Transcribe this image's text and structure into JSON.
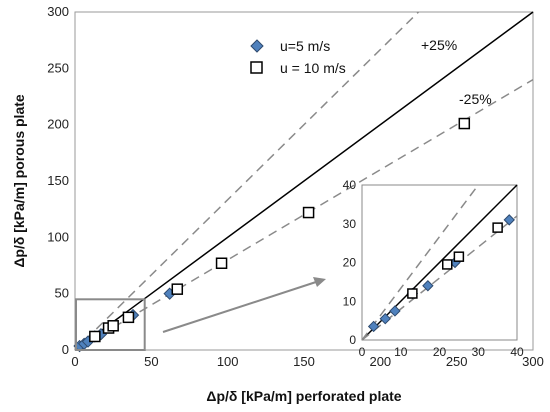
{
  "chart_data": [
    {
      "type": "scatter",
      "xlabel": "Δp/δ [kPa/m] perforated plate",
      "ylabel": "Δp/δ [kPa/m] porous plate",
      "xlim": [
        0,
        300
      ],
      "ylim": [
        0,
        300
      ],
      "x_ticks": [
        "0",
        "50",
        "100",
        "150",
        "200",
        "250",
        "300"
      ],
      "y_ticks": [
        "0",
        "50",
        "100",
        "150",
        "200",
        "250",
        "300"
      ],
      "grid": false,
      "legend_position": "top-left",
      "series": [
        {
          "name": "u=5 m/s",
          "marker": "diamond",
          "color": "#4f81bd",
          "x": [
            3,
            6,
            8.5,
            13,
            17,
            24,
            38,
            62
          ],
          "y": [
            3.5,
            5.5,
            7.5,
            12,
            14,
            20,
            31,
            50
          ]
        },
        {
          "name": "u = 10 m/s",
          "marker": "square",
          "color": "#ffffff",
          "x": [
            13,
            22,
            25,
            35,
            67,
            96,
            153,
            255
          ],
          "y": [
            12,
            19.5,
            21.5,
            29,
            54,
            77,
            122,
            201
          ]
        }
      ],
      "reference_lines": [
        {
          "label": "",
          "slope": 1
        },
        {
          "label": "+25%",
          "slope": 1.3333
        },
        {
          "label": "-25%",
          "slope": 0.8
        }
      ]
    },
    {
      "type": "scatter",
      "role": "inset",
      "xlim": [
        0,
        40
      ],
      "ylim": [
        0,
        40
      ],
      "x_ticks": [
        "0",
        "10",
        "20",
        "30",
        "40"
      ],
      "y_ticks": [
        "0",
        "10",
        "20",
        "30",
        "40"
      ]
    }
  ]
}
